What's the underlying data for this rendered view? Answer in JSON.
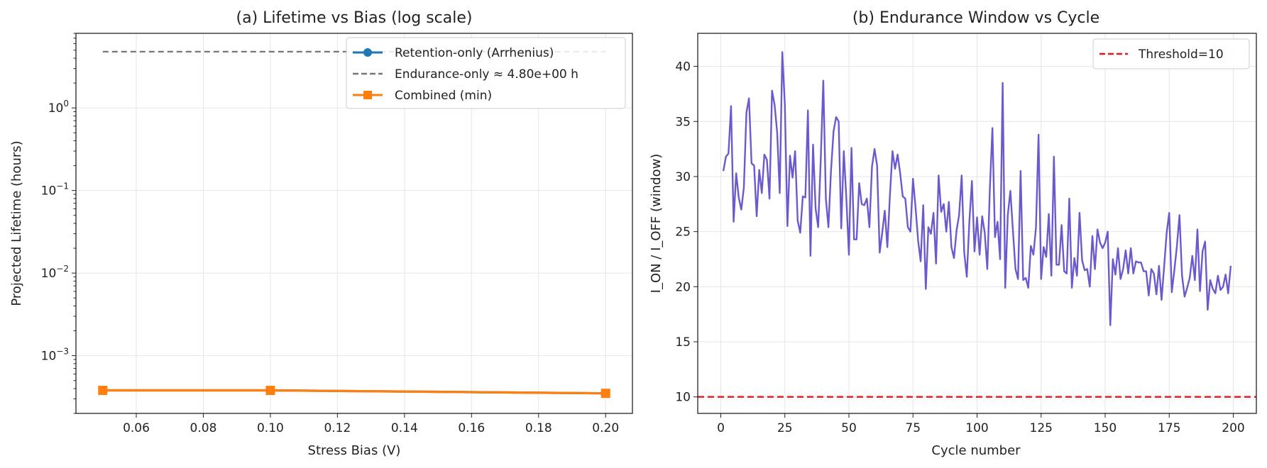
{
  "chart_data": [
    {
      "type": "line",
      "title": "(a) Lifetime vs Bias (log scale)",
      "xlabel": "Stress Bias (V)",
      "ylabel": "Projected Lifetime (hours)",
      "xlim": [
        0.042,
        0.208
      ],
      "ylim": [
        0.0002,
        8
      ],
      "yscale": "log",
      "grid": true,
      "legend_position": "top-right",
      "x_ticks": [
        0.06,
        0.08,
        0.1,
        0.12,
        0.14,
        0.16,
        0.18,
        0.2
      ],
      "x_tick_labels": [
        "0.06",
        "0.08",
        "0.10",
        "0.12",
        "0.14",
        "0.16",
        "0.18",
        "0.20"
      ],
      "y_ticks": [
        0.001,
        0.01,
        0.1,
        1
      ],
      "y_tick_labels": [
        {
          "base": "10",
          "exp": "−3"
        },
        {
          "base": "10",
          "exp": "−2"
        },
        {
          "base": "10",
          "exp": "−1"
        },
        {
          "base": "10",
          "exp": "0"
        }
      ],
      "series": [
        {
          "name": "Retention-only (Arrhenius)",
          "color": "#1f77b4",
          "style": "solid",
          "marker": "circle",
          "x": [
            0.05,
            0.1,
            0.2
          ],
          "y": [
            0.00038,
            0.00038,
            0.00035
          ]
        },
        {
          "name": "Endurance-only ≈ 4.80e+00 h",
          "color": "#777777",
          "style": "dashed",
          "marker": "none",
          "x": [
            0.05,
            0.2
          ],
          "y": [
            4.8,
            4.8
          ]
        },
        {
          "name": "Combined (min)",
          "color": "#ff7f0e",
          "style": "solid",
          "marker": "square",
          "x": [
            0.05,
            0.1,
            0.2
          ],
          "y": [
            0.00038,
            0.00038,
            0.00035
          ]
        }
      ]
    },
    {
      "type": "line",
      "title": "(b) Endurance Window vs Cycle",
      "xlabel": "Cycle number",
      "ylabel": "I_ON / I_OFF (window)",
      "xlim": [
        -9,
        209
      ],
      "ylim": [
        8.5,
        43
      ],
      "grid": true,
      "legend_position": "top-right",
      "x_ticks": [
        0,
        25,
        50,
        75,
        100,
        125,
        150,
        175,
        200
      ],
      "x_tick_labels": [
        "0",
        "25",
        "50",
        "75",
        "100",
        "125",
        "150",
        "175",
        "200"
      ],
      "y_ticks": [
        10,
        15,
        20,
        25,
        30,
        35,
        40
      ],
      "y_tick_labels": [
        "10",
        "15",
        "20",
        "25",
        "30",
        "35",
        "40"
      ],
      "series": [
        {
          "name": "",
          "color": "#6a5acd",
          "style": "solid",
          "marker": "none",
          "x_start": 1,
          "x_step": 1,
          "y": [
            30.5,
            31.8,
            32.1,
            36.4,
            25.9,
            30.3,
            28.1,
            27.0,
            29.0,
            35.8,
            37.1,
            31.2,
            31.0,
            26.4,
            30.6,
            28.5,
            32.0,
            31.5,
            28.0,
            37.8,
            36.5,
            34.0,
            28.5,
            41.3,
            36.5,
            25.5,
            31.9,
            29.9,
            32.3,
            26.0,
            24.9,
            28.2,
            28.1,
            36.0,
            22.8,
            32.9,
            27.1,
            25.4,
            31.5,
            38.7,
            28.0,
            25.4,
            30.5,
            34.1,
            35.4,
            35.0,
            25.3,
            32.3,
            28.0,
            22.9,
            32.6,
            24.3,
            24.3,
            29.4,
            27.5,
            27.4,
            28.0,
            25.4,
            30.9,
            32.5,
            31.0,
            23.1,
            24.9,
            26.9,
            23.6,
            28.3,
            32.3,
            30.7,
            32.0,
            30.3,
            28.2,
            28.0,
            25.4,
            25.0,
            29.8,
            27.2,
            24.2,
            22.3,
            27.4,
            19.8,
            25.4,
            24.8,
            26.7,
            22.1,
            30.1,
            26.8,
            27.5,
            25.0,
            27.7,
            23.6,
            22.6,
            25.1,
            26.5,
            30.1,
            23.1,
            20.9,
            25.9,
            29.6,
            23.2,
            26.3,
            22.9,
            26.4,
            24.9,
            21.6,
            28.9,
            34.4,
            24.5,
            25.9,
            22.5,
            38.5,
            19.9,
            26.5,
            28.7,
            25.1,
            21.6,
            20.7,
            30.5,
            20.6,
            20.8,
            19.9,
            23.7,
            22.9,
            25.4,
            33.8,
            20.7,
            23.6,
            22.7,
            26.6,
            21.0,
            31.8,
            22.0,
            22.0,
            25.6,
            21.4,
            21.2,
            28.0,
            19.9,
            22.6,
            21.0,
            26.7,
            22.4,
            21.5,
            21.6,
            20.0,
            24.6,
            21.6,
            25.2,
            24.0,
            23.5,
            24.0,
            25.0,
            16.5,
            22.5,
            21.1,
            23.5,
            20.7,
            21.6,
            23.3,
            21.2,
            23.5,
            21.2,
            22.3,
            22.2,
            22.2,
            21.4,
            21.4,
            19.2,
            21.6,
            21.2,
            19.3,
            21.9,
            18.8,
            21.8,
            24.9,
            26.7,
            19.5,
            21.5,
            23.7,
            26.5,
            21.0,
            19.1,
            19.9,
            20.8,
            22.8,
            20.6,
            25.2,
            19.6,
            23.2,
            24.1,
            17.9,
            20.6,
            19.8,
            19.4,
            21.0,
            19.7,
            20.0,
            21.1,
            19.4,
            21.9
          ]
        },
        {
          "name": "Threshold=10",
          "color": "#e8161b",
          "style": "dashed",
          "marker": "none",
          "hline": 10
        }
      ]
    }
  ]
}
